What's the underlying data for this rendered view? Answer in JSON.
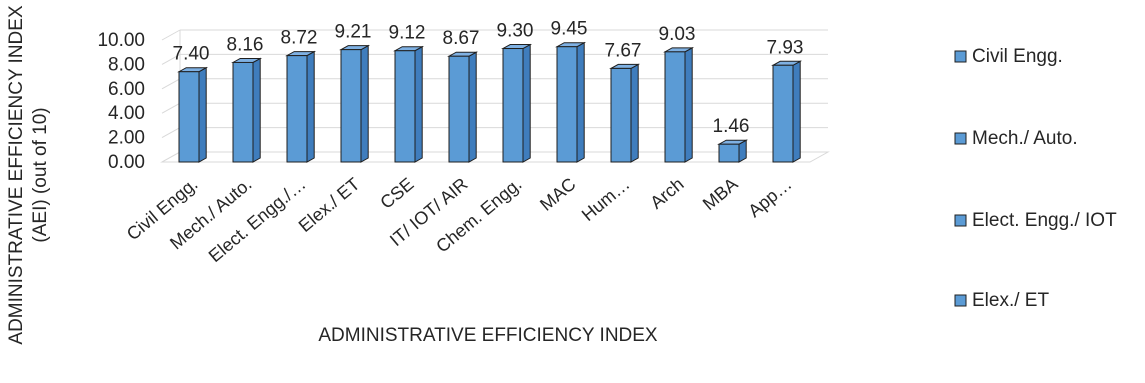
{
  "chart_data": {
    "type": "bar",
    "title": "",
    "categories": [
      "Civil Engg.",
      "Mech./ Auto.",
      "Elect. Engg./…",
      "Elex./ ET",
      "CSE",
      "IT/ IOT/ AIR",
      "Chem. Engg.",
      "MAC",
      "Hum…",
      "Arch",
      "MBA",
      "App…"
    ],
    "values": [
      7.4,
      8.16,
      8.72,
      9.21,
      9.12,
      8.67,
      9.3,
      9.45,
      7.67,
      9.03,
      1.46,
      7.93
    ],
    "value_labels": [
      "7.40",
      "8.16",
      "8.72",
      "9.21",
      "9.12",
      "8.67",
      "9.30",
      "9.45",
      "7.67",
      "9.03",
      "1.46",
      "7.93"
    ],
    "xlabel": "ADMINISTRATIVE EFFICIENCY INDEX",
    "ylabel_line1": "ADMINISTRATIVE EFFICIENCY INDEX",
    "ylabel_line2": "(AEI) (out of 10)",
    "ylim": [
      0,
      10
    ],
    "yticks": [
      "0.00",
      "2.00",
      "4.00",
      "6.00",
      "8.00",
      "10.00"
    ],
    "grid": true,
    "style": "3d-column",
    "legend_position": "right",
    "legend": [
      "Civil Engg.",
      "Mech./ Auto.",
      "Elect. Engg./ IOT",
      "Elex./ ET"
    ],
    "colors": {
      "bar_front": "#5b9bd5",
      "bar_side": "#3f7dbd",
      "bar_top": "#7fb1e3",
      "bar_stroke": "#1f1f1f",
      "grid": "#d9d9d9",
      "text": "#262626"
    }
  }
}
